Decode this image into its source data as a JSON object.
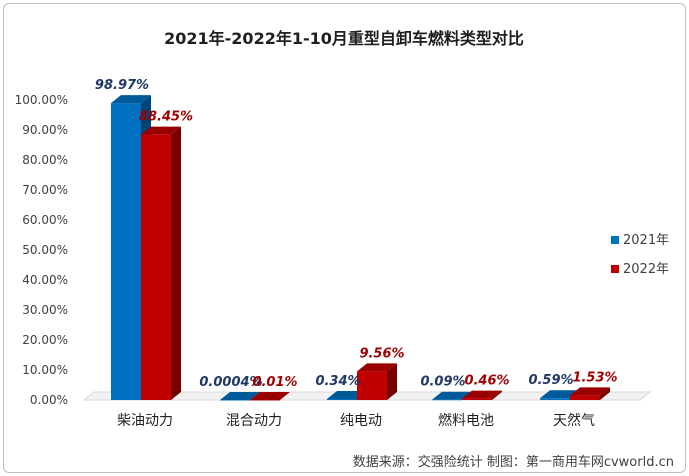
{
  "chart_data": {
    "type": "bar",
    "title": "2021年-2022年1-10月重型自卸车燃料类型对比",
    "categories": [
      "柴油动力",
      "混合动力",
      "纯电动",
      "燃料电池",
      "天然气"
    ],
    "y_ticks": [
      "0.00%",
      "10.00%",
      "20.00%",
      "30.00%",
      "40.00%",
      "50.00%",
      "60.00%",
      "70.00%",
      "80.00%",
      "90.00%",
      "100.00%"
    ],
    "ylim": [
      0,
      100
    ],
    "grid": false,
    "legend_position": "right",
    "series": [
      {
        "name": "2021年",
        "color": "#0070c0",
        "label_color": "#1f3864",
        "values": [
          98.97,
          0.0004,
          0.34,
          0.09,
          0.59
        ],
        "labels": [
          "98.97%",
          "0.0004%",
          "0.34%",
          "0.09%",
          "0.59%"
        ]
      },
      {
        "name": "2022年",
        "color": "#c00000",
        "label_color": "#9e0000",
        "values": [
          88.45,
          0.01,
          9.56,
          0.46,
          1.53
        ],
        "labels": [
          "88.45%",
          "0.01%",
          "9.56%",
          "0.46%",
          "1.53%"
        ]
      }
    ],
    "source_text": "数据来源：交强险统计    制图：第一商用车网cvworld.cn"
  }
}
